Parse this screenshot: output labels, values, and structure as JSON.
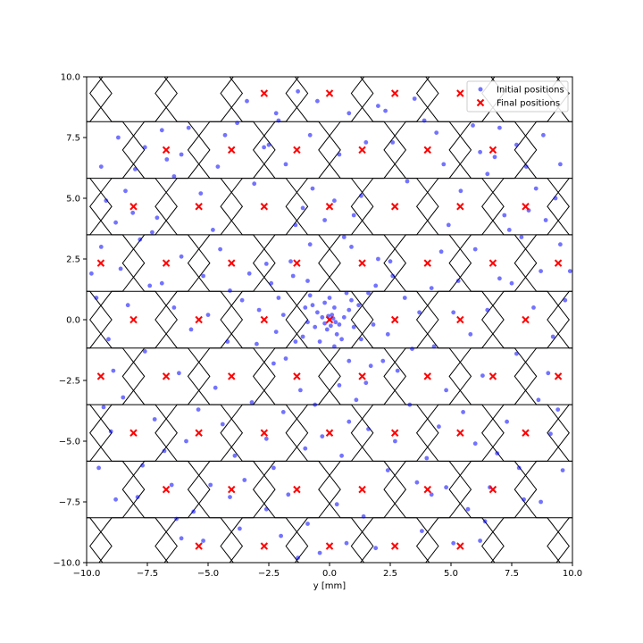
{
  "chart_data": {
    "type": "scatter",
    "title": "",
    "xlabel": "y [mm]",
    "ylabel": "",
    "xlim": [
      -10,
      10
    ],
    "ylim": [
      -10,
      10
    ],
    "grid": false,
    "legend_position": "top-right",
    "x_ticks": [
      -10.0,
      -7.5,
      -5.0,
      -2.5,
      0.0,
      2.5,
      5.0,
      7.5,
      10.0
    ],
    "x_tick_labels": [
      "−10.0",
      "−7.5",
      "−5.0",
      "−2.5",
      "0.0",
      "2.5",
      "5.0",
      "7.5",
      "10.0"
    ],
    "y_ticks": [
      -10.0,
      -7.5,
      -5.0,
      -2.5,
      0.0,
      2.5,
      5.0,
      7.5,
      10.0
    ],
    "y_tick_labels": [
      "−10.0",
      "−7.5",
      "−5.0",
      "−2.5",
      "0.0",
      "2.5",
      "5.0",
      "7.5",
      "10.0"
    ],
    "hex_grid": {
      "row_spacing": 2.33,
      "col_spacing": 2.69,
      "rows_y": [
        -11.65,
        -9.32,
        -6.99,
        -4.66,
        -2.33,
        0,
        2.33,
        4.66,
        6.99,
        9.32,
        11.65
      ],
      "stroke_color": "#000000"
    },
    "colors": {
      "initial": "#0000ff",
      "final": "#ff0000",
      "hex_edge": "#000000"
    },
    "series": [
      {
        "name": "Initial positions",
        "marker": "dot",
        "color": "#0000ff",
        "points": [
          [
            0.1,
            0.2
          ],
          [
            -0.3,
            0.1
          ],
          [
            0.4,
            -0.2
          ],
          [
            -0.1,
            -0.4
          ],
          [
            0.2,
            0.5
          ],
          [
            -0.5,
            0.3
          ],
          [
            0.6,
            0.1
          ],
          [
            -0.2,
            0.7
          ],
          [
            0.3,
            -0.6
          ],
          [
            -0.6,
            -0.3
          ],
          [
            0.8,
            0.4
          ],
          [
            -0.7,
            0.6
          ],
          [
            0.5,
            -0.8
          ],
          [
            -0.9,
            -0.1
          ],
          [
            0.0,
            0.9
          ],
          [
            1.0,
            -0.3
          ],
          [
            -0.4,
            -0.9
          ],
          [
            0.9,
            0.8
          ],
          [
            -1.0,
            0.5
          ],
          [
            0.2,
            -1.1
          ],
          [
            1.2,
            0.6
          ],
          [
            -1.1,
            -0.7
          ],
          [
            0.7,
            1.1
          ],
          [
            -0.8,
            1.0
          ],
          [
            1.3,
            -0.8
          ],
          [
            0.15,
            0.05
          ],
          [
            -0.05,
            0.15
          ],
          [
            0.25,
            -0.1
          ],
          [
            -0.2,
            -0.15
          ],
          [
            0.05,
            -0.25
          ],
          [
            -1.5,
            1.8
          ],
          [
            -2.1,
            0.9
          ],
          [
            -3.0,
            -1.0
          ],
          [
            -2.4,
            1.5
          ],
          [
            -1.8,
            -1.6
          ],
          [
            -2.9,
            0.4
          ],
          [
            -3.3,
            1.9
          ],
          [
            -1.6,
            2.4
          ],
          [
            -2.2,
            -0.5
          ],
          [
            -3.6,
            0.8
          ],
          [
            1.9,
            1.4
          ],
          [
            2.4,
            -0.6
          ],
          [
            3.1,
            0.9
          ],
          [
            2.0,
            2.5
          ],
          [
            1.7,
            -1.9
          ],
          [
            3.4,
            -1.2
          ],
          [
            2.6,
            1.8
          ],
          [
            3.7,
            0.3
          ],
          [
            1.5,
            -2.6
          ],
          [
            2.8,
            -2.1
          ],
          [
            -1.2,
            -2.9
          ],
          [
            0.4,
            -2.7
          ],
          [
            -0.6,
            -3.5
          ],
          [
            1.1,
            -3.3
          ],
          [
            -1.9,
            -3.8
          ],
          [
            0.8,
            -4.2
          ],
          [
            -0.3,
            -4.8
          ],
          [
            1.6,
            -4.5
          ],
          [
            -1.0,
            -5.3
          ],
          [
            0.5,
            -5.6
          ],
          [
            -0.8,
            3.1
          ],
          [
            0.6,
            3.4
          ],
          [
            -0.2,
            4.1
          ],
          [
            1.0,
            4.3
          ],
          [
            -1.4,
            3.9
          ],
          [
            0.2,
            4.9
          ],
          [
            -0.7,
            5.4
          ],
          [
            1.3,
            5.1
          ],
          [
            -1.1,
            4.6
          ],
          [
            0.9,
            3.0
          ],
          [
            -4.5,
            2.9
          ],
          [
            -5.2,
            1.8
          ],
          [
            -6.1,
            2.6
          ],
          [
            -4.8,
            3.7
          ],
          [
            -5.7,
            -0.4
          ],
          [
            -4.2,
            -0.9
          ],
          [
            -6.4,
            0.5
          ],
          [
            -5.0,
            0.2
          ],
          [
            -4.1,
            1.2
          ],
          [
            -6.9,
            1.5
          ],
          [
            4.6,
            2.8
          ],
          [
            5.3,
            1.6
          ],
          [
            6.0,
            2.9
          ],
          [
            4.9,
            3.9
          ],
          [
            5.8,
            -0.6
          ],
          [
            4.3,
            -1.1
          ],
          [
            6.5,
            0.4
          ],
          [
            5.1,
            0.3
          ],
          [
            4.2,
            1.3
          ],
          [
            7.0,
            1.7
          ],
          [
            -7.8,
            3.3
          ],
          [
            -8.6,
            2.1
          ],
          [
            -9.4,
            3.0
          ],
          [
            -8.1,
            4.4
          ],
          [
            -9.1,
            -0.8
          ],
          [
            -7.6,
            -1.3
          ],
          [
            -9.6,
            0.9
          ],
          [
            -8.3,
            0.6
          ],
          [
            -7.4,
            1.4
          ],
          [
            -9.8,
            1.9
          ],
          [
            7.9,
            3.4
          ],
          [
            8.7,
            2.0
          ],
          [
            9.5,
            3.1
          ],
          [
            8.2,
            4.5
          ],
          [
            9.2,
            -0.7
          ],
          [
            7.7,
            -1.4
          ],
          [
            9.7,
            0.8
          ],
          [
            8.4,
            0.5
          ],
          [
            7.5,
            1.5
          ],
          [
            9.9,
            2.0
          ],
          [
            -3.2,
            -3.4
          ],
          [
            -4.7,
            -2.8
          ],
          [
            -2.6,
            -4.9
          ],
          [
            -5.4,
            -3.7
          ],
          [
            -3.9,
            -5.6
          ],
          [
            -6.2,
            -2.2
          ],
          [
            -4.4,
            -4.3
          ],
          [
            -2.3,
            -6.1
          ],
          [
            -5.9,
            -5.0
          ],
          [
            -3.5,
            -6.6
          ],
          [
            3.3,
            -3.5
          ],
          [
            4.8,
            -2.9
          ],
          [
            2.7,
            -5.0
          ],
          [
            5.5,
            -3.8
          ],
          [
            4.0,
            -5.7
          ],
          [
            6.3,
            -2.3
          ],
          [
            4.5,
            -4.4
          ],
          [
            2.4,
            -6.2
          ],
          [
            6.0,
            -5.1
          ],
          [
            3.6,
            -6.7
          ],
          [
            -3.1,
            5.6
          ],
          [
            -4.6,
            6.3
          ],
          [
            -2.5,
            7.2
          ],
          [
            -5.3,
            5.2
          ],
          [
            -3.8,
            8.1
          ],
          [
            -6.1,
            6.8
          ],
          [
            -4.3,
            7.6
          ],
          [
            -2.2,
            8.5
          ],
          [
            -5.8,
            7.9
          ],
          [
            -3.4,
            9.0
          ],
          [
            3.2,
            5.7
          ],
          [
            4.7,
            6.4
          ],
          [
            2.6,
            7.3
          ],
          [
            5.4,
            5.3
          ],
          [
            3.9,
            8.2
          ],
          [
            6.2,
            6.9
          ],
          [
            4.4,
            7.7
          ],
          [
            2.3,
            8.6
          ],
          [
            5.9,
            8.0
          ],
          [
            3.5,
            9.1
          ],
          [
            -7.2,
            -4.1
          ],
          [
            -8.5,
            -3.2
          ],
          [
            -6.8,
            -5.4
          ],
          [
            -9.0,
            -4.6
          ],
          [
            -7.7,
            -6.0
          ],
          [
            -8.9,
            -2.1
          ],
          [
            -6.5,
            -6.8
          ],
          [
            -7.9,
            -7.3
          ],
          [
            -6.3,
            -8.2
          ],
          [
            -9.3,
            -3.6
          ],
          [
            7.3,
            -4.2
          ],
          [
            8.6,
            -3.3
          ],
          [
            6.9,
            -5.5
          ],
          [
            9.1,
            -4.7
          ],
          [
            7.8,
            -6.1
          ],
          [
            9.0,
            -2.2
          ],
          [
            6.6,
            -6.9
          ],
          [
            8.0,
            -7.4
          ],
          [
            6.4,
            -8.3
          ],
          [
            9.4,
            -3.7
          ],
          [
            -7.1,
            4.2
          ],
          [
            -8.4,
            5.3
          ],
          [
            -6.7,
            6.6
          ],
          [
            -9.2,
            4.9
          ],
          [
            -7.6,
            7.1
          ],
          [
            -6.4,
            5.9
          ],
          [
            -8.0,
            6.2
          ],
          [
            -6.9,
            7.8
          ],
          [
            -7.3,
            3.6
          ],
          [
            -8.8,
            4.0
          ],
          [
            7.2,
            4.3
          ],
          [
            8.5,
            5.4
          ],
          [
            6.8,
            6.7
          ],
          [
            9.3,
            5.0
          ],
          [
            7.7,
            7.2
          ],
          [
            6.5,
            6.0
          ],
          [
            8.1,
            6.3
          ],
          [
            7.0,
            7.9
          ],
          [
            7.4,
            3.7
          ],
          [
            8.9,
            4.1
          ],
          [
            -1.7,
            -7.2
          ],
          [
            0.3,
            -7.6
          ],
          [
            -0.9,
            -8.4
          ],
          [
            1.4,
            -8.1
          ],
          [
            -2.0,
            -8.9
          ],
          [
            0.7,
            -9.2
          ],
          [
            -0.4,
            -9.6
          ],
          [
            1.9,
            -9.4
          ],
          [
            -1.3,
            -9.8
          ],
          [
            -2.6,
            -7.8
          ],
          [
            -1.8,
            6.4
          ],
          [
            0.4,
            6.8
          ],
          [
            -0.8,
            7.6
          ],
          [
            1.5,
            7.3
          ],
          [
            -2.1,
            8.2
          ],
          [
            0.8,
            8.5
          ],
          [
            -0.5,
            9.0
          ],
          [
            2.0,
            8.8
          ],
          [
            -1.3,
            9.4
          ],
          [
            -2.7,
            7.1
          ],
          [
            -2.3,
            -1.8
          ],
          [
            2.2,
            -1.7
          ],
          [
            -1.4,
            -0.9
          ],
          [
            1.6,
            1.1
          ],
          [
            -1.9,
            0.2
          ],
          [
            1.8,
            -0.2
          ],
          [
            -0.9,
            1.6
          ],
          [
            0.8,
            -1.7
          ],
          [
            -2.6,
            2.3
          ],
          [
            2.5,
            2.4
          ],
          [
            -4.9,
            -6.8
          ],
          [
            -5.6,
            -7.9
          ],
          [
            -4.1,
            -7.3
          ],
          [
            -3.7,
            -8.6
          ],
          [
            -5.2,
            -9.1
          ],
          [
            4.8,
            -6.9
          ],
          [
            5.7,
            -7.8
          ],
          [
            4.2,
            -7.2
          ],
          [
            3.8,
            -8.7
          ],
          [
            5.1,
            -9.2
          ],
          [
            -9.5,
            -6.1
          ],
          [
            -8.8,
            -7.4
          ],
          [
            9.6,
            -6.2
          ],
          [
            8.7,
            -7.5
          ],
          [
            -9.4,
            6.3
          ],
          [
            -8.7,
            7.5
          ],
          [
            9.5,
            6.4
          ],
          [
            8.8,
            7.6
          ],
          [
            -6.1,
            -9.0
          ],
          [
            6.2,
            -9.1
          ]
        ]
      },
      {
        "name": "Final positions",
        "marker": "x",
        "color": "#ff0000",
        "points": [
          [
            0,
            0
          ],
          [
            0,
            4.66
          ],
          [
            0,
            -4.66
          ],
          [
            0,
            9.32
          ],
          [
            0,
            -9.32
          ],
          [
            1.345,
            2.33
          ],
          [
            1.345,
            -2.33
          ],
          [
            1.345,
            6.99
          ],
          [
            1.345,
            -6.99
          ],
          [
            -1.345,
            2.33
          ],
          [
            -1.345,
            -2.33
          ],
          [
            -1.345,
            6.99
          ],
          [
            -1.345,
            -6.99
          ],
          [
            2.69,
            0
          ],
          [
            2.69,
            4.66
          ],
          [
            2.69,
            -4.66
          ],
          [
            2.69,
            9.32
          ],
          [
            2.69,
            -9.32
          ],
          [
            -2.69,
            0
          ],
          [
            -2.69,
            4.66
          ],
          [
            -2.69,
            -4.66
          ],
          [
            -2.69,
            9.32
          ],
          [
            -2.69,
            -9.32
          ],
          [
            4.035,
            2.33
          ],
          [
            4.035,
            -2.33
          ],
          [
            4.035,
            6.99
          ],
          [
            4.035,
            -6.99
          ],
          [
            -4.035,
            2.33
          ],
          [
            -4.035,
            -2.33
          ],
          [
            -4.035,
            6.99
          ],
          [
            -4.035,
            -6.99
          ],
          [
            5.38,
            0
          ],
          [
            5.38,
            4.66
          ],
          [
            5.38,
            -4.66
          ],
          [
            5.38,
            9.32
          ],
          [
            5.38,
            -9.32
          ],
          [
            -5.38,
            0
          ],
          [
            -5.38,
            4.66
          ],
          [
            -5.38,
            -4.66
          ],
          [
            -5.38,
            -9.32
          ],
          [
            6.725,
            2.33
          ],
          [
            6.725,
            -2.33
          ],
          [
            6.725,
            6.99
          ],
          [
            6.725,
            -6.99
          ],
          [
            -6.725,
            2.33
          ],
          [
            -6.725,
            -2.33
          ],
          [
            -6.725,
            6.99
          ],
          [
            -6.725,
            -6.99
          ],
          [
            8.07,
            0
          ],
          [
            8.07,
            4.66
          ],
          [
            8.07,
            -4.66
          ],
          [
            -8.07,
            0
          ],
          [
            -8.07,
            4.66
          ],
          [
            -8.07,
            -4.66
          ],
          [
            9.415,
            2.33
          ],
          [
            9.415,
            -2.33
          ],
          [
            -9.415,
            2.33
          ],
          [
            -9.415,
            -2.33
          ]
        ]
      }
    ]
  }
}
